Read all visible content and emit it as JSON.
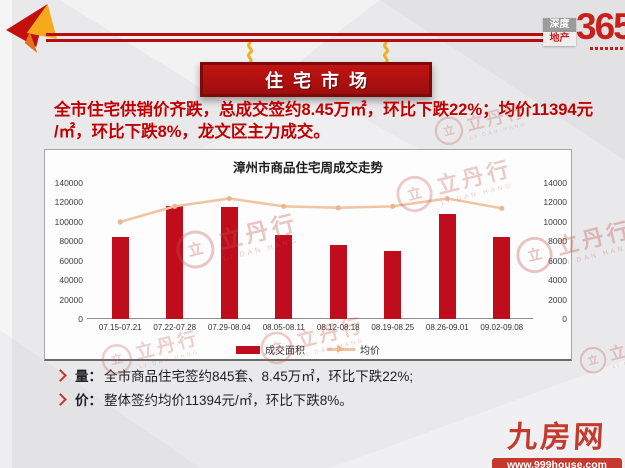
{
  "header": {
    "banner_title": "住宅市场",
    "logo": {
      "word1": "深度",
      "word2": "地产",
      "number": "365"
    }
  },
  "headline": {
    "line1": "全市住宅供销价齐跌，总成交签约8.45万㎡，环比下跌22%；均价11394元",
    "line2": "/㎡，环比下跌8%，龙文区主力成交。"
  },
  "chart_data": {
    "type": "bar",
    "subtype": "bar-line-combo",
    "title": "漳州市商品住宅周成交走势",
    "categories": [
      "07.15-07.21",
      "07.22-07.28",
      "07.29-08.04",
      "08.05-08.11",
      "08.12-08.18",
      "08.19-08.25",
      "08.26-09.01",
      "09.02-09.08"
    ],
    "series": [
      {
        "name": "成交面积",
        "chart": "bar",
        "axis": "left",
        "color": "#c00d1e",
        "values": [
          84500,
          116000,
          115500,
          86000,
          76500,
          70500,
          108300,
          84500
        ]
      },
      {
        "name": "均价",
        "chart": "line",
        "axis": "right",
        "color": "#f0c3a2",
        "values": [
          10000,
          11600,
          12400,
          11600,
          11450,
          11600,
          12400,
          11394
        ]
      }
    ],
    "left_axis": {
      "min": 0,
      "max": 140000,
      "step": 20000,
      "ticks": [
        0,
        20000,
        40000,
        60000,
        80000,
        100000,
        120000,
        140000
      ]
    },
    "right_axis": {
      "min": 0,
      "max": 14000,
      "step": 2000,
      "ticks": [
        0,
        2000,
        4000,
        6000,
        8000,
        10000,
        12000,
        14000
      ]
    },
    "legend": {
      "position": "bottom",
      "items": [
        "成交面积",
        "均价"
      ]
    },
    "grid": false
  },
  "bullets": [
    {
      "label": "量：",
      "text": "全市商品住宅签约845套、8.45万㎡，环比下跌22%;"
    },
    {
      "label": "价：",
      "text": "整体签约均价11394元/㎡，环比下跌8%。"
    }
  ],
  "watermark": {
    "seal_char": "立",
    "text": "立丹行",
    "subtext": "LI DAN HANG"
  },
  "footer_logo": {
    "name": "九房网",
    "url": "www.999house.com"
  },
  "colors": {
    "accent_red": "#c00000",
    "bar_red": "#c00d1e",
    "banner_red": "#a50e0f",
    "line_peach": "#f0c3a2",
    "logo_red": "#c8201c",
    "footer_red": "#c43a2f",
    "background": "#e9e9eb"
  }
}
